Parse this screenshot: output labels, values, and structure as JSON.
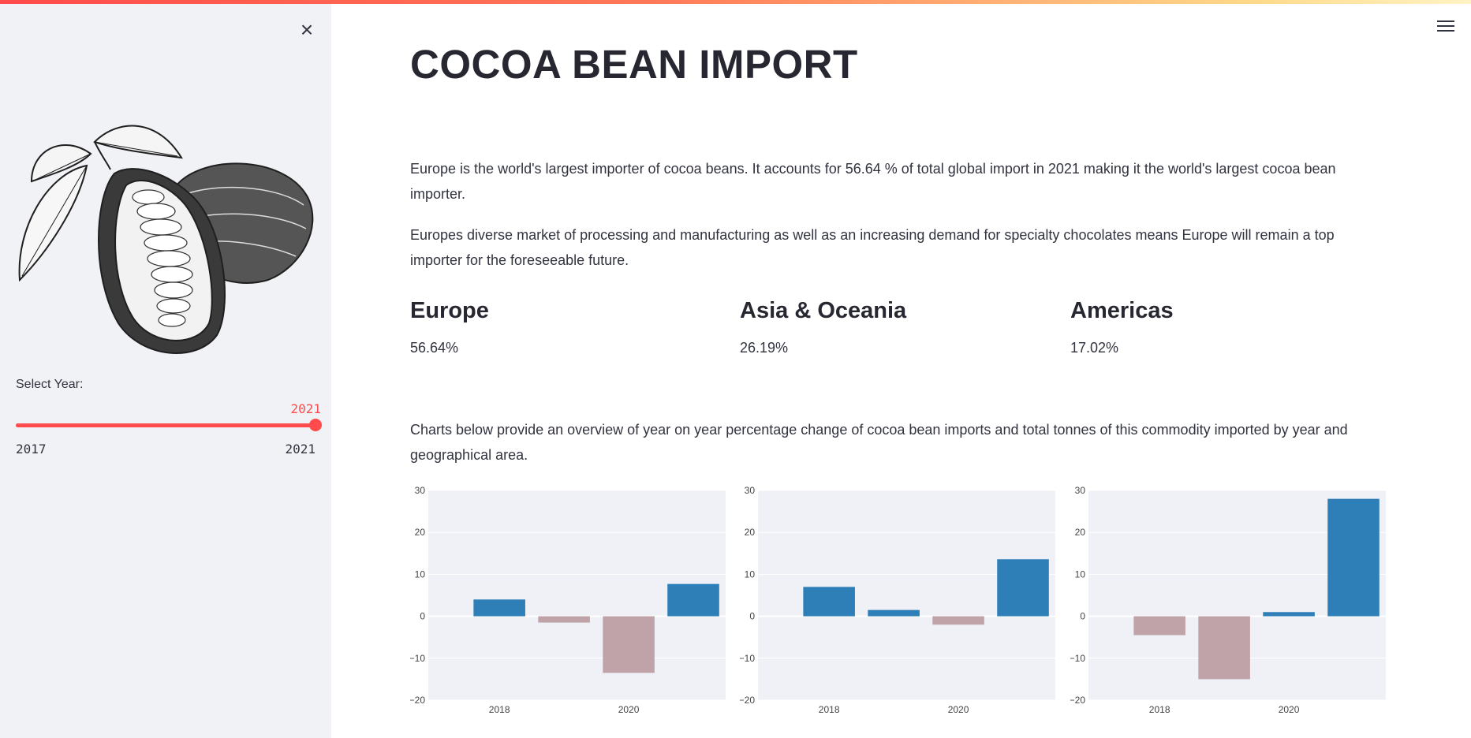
{
  "sidebar": {
    "close_label": "×",
    "illustration": "cocoa-pod-illustration",
    "slider": {
      "label": "Select Year:",
      "value": "2021",
      "min": "2017",
      "max": "2021",
      "fraction": 1.0,
      "accent": "#ff4b4b"
    }
  },
  "header": {
    "menu_icon": "hamburger-menu-icon"
  },
  "main": {
    "title": "COCOA BEAN IMPORT",
    "para1": "Europe is the world's largest importer of cocoa beans. It accounts for 56.64 % of total global import in 2021 making it the world's largest cocoa bean importer.",
    "para2": "Europes diverse market of processing and manufacturing as well as an increasing demand for specialty chocolates means Europe will remain a top importer for the foreseeable future.",
    "metrics": [
      {
        "label": "Europe",
        "value": "56.64%"
      },
      {
        "label": "Asia & Oceania",
        "value": "26.19%"
      },
      {
        "label": "Americas",
        "value": "17.02%"
      }
    ],
    "para3": "Charts below provide an overview of year on year percentage change of cocoa bean imports and total tonnes of this commodity imported by year and geographical area."
  },
  "colors": {
    "positive": "#2e7fb8",
    "negative": "#bfa3a8",
    "plot_bg": "#eff1f6",
    "grid": "#ffffff"
  },
  "chart_data": [
    {
      "type": "bar",
      "x": [
        2018,
        2019,
        2020,
        2021
      ],
      "values": [
        4,
        -1.5,
        -13.5,
        7.7
      ],
      "xticks": [
        "2018",
        "2020"
      ],
      "yticks": [
        "30",
        "20",
        "10",
        "0",
        "−10",
        "−20"
      ],
      "ylim": [
        -20,
        30
      ],
      "grid": true
    },
    {
      "type": "bar",
      "x": [
        2018,
        2019,
        2020,
        2021
      ],
      "values": [
        7,
        1.5,
        -2,
        13.6
      ],
      "xticks": [
        "2018",
        "2020"
      ],
      "yticks": [
        "30",
        "20",
        "10",
        "0",
        "−10",
        "−20"
      ],
      "ylim": [
        -20,
        30
      ],
      "grid": true
    },
    {
      "type": "bar",
      "x": [
        2018,
        2019,
        2020,
        2021
      ],
      "values": [
        -4.5,
        -15,
        1,
        28
      ],
      "xticks": [
        "2018",
        "2020"
      ],
      "yticks": [
        "30",
        "20",
        "10",
        "0",
        "−10",
        "−20"
      ],
      "ylim": [
        -20,
        30
      ],
      "grid": true
    }
  ]
}
